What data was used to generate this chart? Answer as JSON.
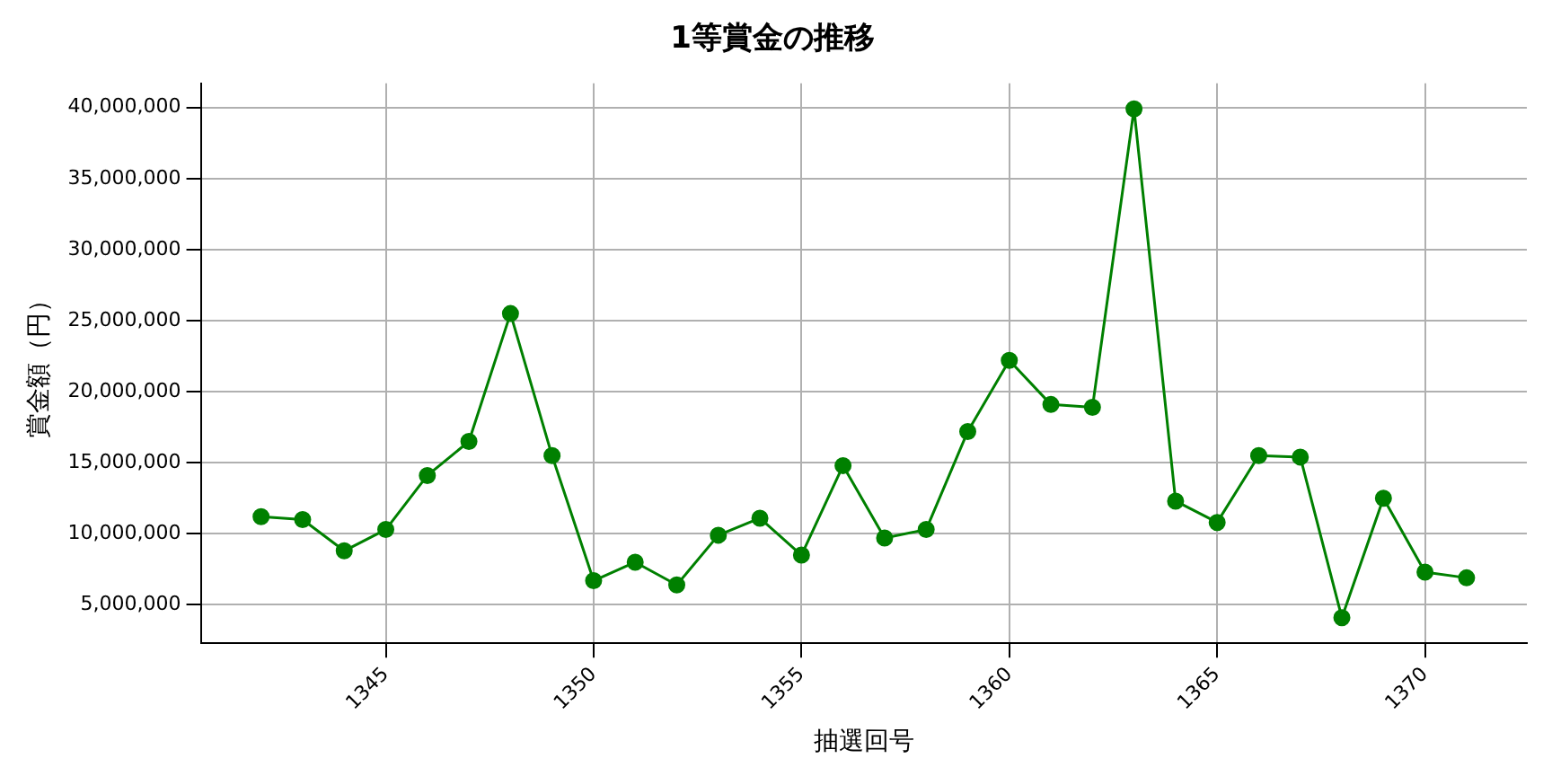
{
  "chart_data": {
    "type": "line",
    "title": "1等賞金の推移",
    "xlabel": "抽選回号",
    "ylabel": "賞金額（円）",
    "x": [
      1342,
      1343,
      1344,
      1345,
      1346,
      1347,
      1348,
      1349,
      1350,
      1351,
      1352,
      1353,
      1354,
      1355,
      1356,
      1357,
      1358,
      1359,
      1360,
      1361,
      1362,
      1363,
      1364,
      1365,
      1366,
      1367,
      1368,
      1369,
      1370,
      1371
    ],
    "series": [
      {
        "color": "#008000",
        "values": [
          11200000,
          11000000,
          8800000,
          10300000,
          14100000,
          16500000,
          25500000,
          15500000,
          6700000,
          8000000,
          6400000,
          9900000,
          11100000,
          8500000,
          14800000,
          9700000,
          10300000,
          17200000,
          22200000,
          19100000,
          18900000,
          39900000,
          12300000,
          10800000,
          15500000,
          15400000,
          4100000,
          12500000,
          7300000,
          6900000
        ]
      }
    ],
    "xlim": [
      1340.55,
      1372.45
    ],
    "xticks": [
      1345,
      1350,
      1355,
      1360,
      1365,
      1370
    ],
    "ylim": [
      2300000,
      41700000
    ],
    "yticks": [
      {
        "value": 5000000,
        "label": "5,000,000"
      },
      {
        "value": 10000000,
        "label": "10,000,000"
      },
      {
        "value": 15000000,
        "label": "15,000,000"
      },
      {
        "value": 20000000,
        "label": "20,000,000"
      },
      {
        "value": 25000000,
        "label": "25,000,000"
      },
      {
        "value": 30000000,
        "label": "30,000,000"
      },
      {
        "value": 35000000,
        "label": "35,000,000"
      },
      {
        "value": 40000000,
        "label": "40,000,000"
      }
    ],
    "grid": true,
    "legend": false,
    "marker": "circle",
    "line_style": "solid"
  }
}
